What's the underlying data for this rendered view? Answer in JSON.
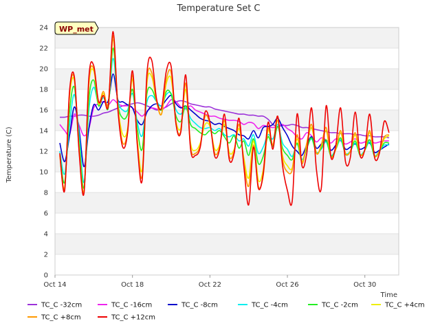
{
  "chart_data": {
    "type": "line",
    "title": "Temperature Set C",
    "xlabel": "Time",
    "ylabel": "Temperature (C)",
    "badge": "WP_met",
    "ylim": [
      0,
      24
    ],
    "yticks": [
      0,
      2,
      4,
      6,
      8,
      10,
      12,
      14,
      16,
      18,
      20,
      22,
      24
    ],
    "xlim": [
      "2023-10-14",
      "2023-10-31T18:00"
    ],
    "xticks": [
      {
        "date": "2023-10-14",
        "label": "Oct 14"
      },
      {
        "date": "2023-10-18",
        "label": "Oct 18"
      },
      {
        "date": "2023-10-22",
        "label": "Oct 22"
      },
      {
        "date": "2023-10-26",
        "label": "Oct 26"
      },
      {
        "date": "2023-10-30",
        "label": "Oct 30"
      }
    ],
    "grid": "horizontal-bands",
    "legend_position": "bottom",
    "x": [
      "2023-10-14T06:00",
      "2023-10-14T12:00",
      "2023-10-14T18:00",
      "2023-10-15T00:00",
      "2023-10-15T06:00",
      "2023-10-15T12:00",
      "2023-10-15T18:00",
      "2023-10-16T00:00",
      "2023-10-16T06:00",
      "2023-10-16T12:00",
      "2023-10-16T18:00",
      "2023-10-17T00:00",
      "2023-10-17T06:00",
      "2023-10-17T12:00",
      "2023-10-17T18:00",
      "2023-10-18T00:00",
      "2023-10-18T06:00",
      "2023-10-18T12:00",
      "2023-10-18T18:00",
      "2023-10-19T00:00",
      "2023-10-19T06:00",
      "2023-10-19T12:00",
      "2023-10-19T18:00",
      "2023-10-20T00:00",
      "2023-10-20T06:00",
      "2023-10-20T12:00",
      "2023-10-20T18:00",
      "2023-10-21T00:00",
      "2023-10-21T06:00",
      "2023-10-21T12:00",
      "2023-10-21T18:00",
      "2023-10-22T00:00",
      "2023-10-22T06:00",
      "2023-10-22T12:00",
      "2023-10-22T18:00",
      "2023-10-23T00:00",
      "2023-10-23T06:00",
      "2023-10-23T12:00",
      "2023-10-23T18:00",
      "2023-10-24T00:00",
      "2023-10-24T06:00",
      "2023-10-24T12:00",
      "2023-10-24T18:00",
      "2023-10-25T00:00",
      "2023-10-25T06:00",
      "2023-10-25T12:00",
      "2023-10-25T18:00",
      "2023-10-26T00:00",
      "2023-10-26T06:00",
      "2023-10-26T12:00",
      "2023-10-26T18:00",
      "2023-10-27T00:00",
      "2023-10-27T06:00",
      "2023-10-27T12:00",
      "2023-10-27T18:00",
      "2023-10-28T00:00",
      "2023-10-28T06:00",
      "2023-10-28T12:00",
      "2023-10-28T18:00",
      "2023-10-29T00:00",
      "2023-10-29T06:00",
      "2023-10-29T12:00",
      "2023-10-29T18:00",
      "2023-10-30T00:00",
      "2023-10-30T06:00",
      "2023-10-30T12:00",
      "2023-10-30T18:00",
      "2023-10-31T00:00",
      "2023-10-31T06:00"
    ],
    "series": [
      {
        "name": "TC_C -32cm",
        "color": "#9b30d9",
        "values": [
          15.3,
          15.3,
          15.4,
          15.4,
          15.5,
          15.5,
          15.4,
          15.4,
          15.5,
          15.7,
          15.8,
          16.0,
          16.2,
          16.4,
          16.5,
          16.6,
          16.7,
          16.6,
          16.4,
          16.2,
          16.0,
          16.1,
          16.3,
          16.6,
          16.8,
          16.9,
          16.8,
          16.6,
          16.5,
          16.4,
          16.3,
          16.3,
          16.1,
          16.0,
          15.9,
          15.8,
          15.7,
          15.6,
          15.6,
          15.5,
          15.5,
          15.4,
          15.4,
          15.1,
          14.6,
          14.4,
          14.5,
          14.5,
          14.6,
          14.5,
          14.3,
          14.3,
          14.2,
          14.1,
          14.0,
          13.9,
          13.8,
          13.8,
          13.7,
          13.7,
          13.7,
          13.6,
          13.6,
          13.5,
          13.5,
          13.4,
          13.4,
          13.4,
          13.3
        ]
      },
      {
        "name": "TC_C -16cm",
        "color": "#ee22ee",
        "values": [
          14.6,
          14.0,
          13.6,
          15.6,
          14.5,
          13.5,
          14.2,
          16.2,
          16.6,
          16.8,
          16.5,
          17.0,
          16.6,
          16.4,
          16.4,
          16.2,
          15.8,
          15.4,
          15.9,
          16.2,
          16.1,
          16.0,
          16.4,
          17.0,
          16.8,
          16.3,
          16.1,
          16.4,
          16.0,
          15.8,
          15.6,
          15.4,
          15.4,
          15.2,
          15.1,
          15.0,
          15.0,
          14.9,
          14.6,
          14.8,
          14.7,
          14.2,
          14.5,
          14.4,
          14.3,
          14.4,
          14.6,
          14.2,
          13.9,
          13.4,
          13.2,
          13.8,
          13.5,
          12.9,
          13.3,
          13.1,
          12.8,
          13.2,
          13.0,
          12.7,
          12.9,
          13.2,
          12.8,
          12.9,
          13.1,
          12.8,
          12.9,
          13.0,
          13.0
        ]
      },
      {
        "name": "TC_C -8cm",
        "color": "#0000cc",
        "values": [
          12.8,
          11.0,
          13.5,
          16.3,
          14.0,
          10.5,
          14.2,
          16.5,
          16.0,
          16.8,
          16.9,
          19.5,
          17.0,
          16.8,
          16.5,
          16.2,
          15.0,
          14.6,
          15.8,
          16.4,
          16.6,
          16.4,
          17.0,
          17.4,
          16.6,
          16.2,
          16.4,
          16.0,
          15.6,
          15.2,
          15.0,
          14.9,
          14.6,
          14.7,
          14.4,
          14.2,
          14.0,
          13.6,
          13.5,
          13.2,
          14.0,
          13.3,
          14.3,
          14.4,
          14.6,
          15.2,
          14.3,
          13.5,
          12.5,
          12.0,
          11.6,
          12.6,
          13.4,
          12.3,
          12.7,
          13.0,
          12.1,
          12.6,
          13.1,
          12.2,
          12.4,
          12.7,
          12.2,
          12.4,
          12.8,
          11.9,
          12.1,
          12.4,
          12.7
        ]
      },
      {
        "name": "TC_C -4cm",
        "color": "#00eeee",
        "values": [
          12.0,
          9.8,
          14.5,
          17.5,
          13.5,
          9.0,
          16.0,
          18.2,
          16.6,
          17.2,
          16.6,
          21.0,
          16.9,
          16.0,
          16.0,
          17.6,
          14.8,
          13.5,
          16.8,
          17.4,
          16.8,
          16.4,
          17.5,
          17.6,
          16.0,
          15.6,
          16.2,
          15.2,
          14.7,
          14.3,
          14.2,
          14.3,
          14.0,
          14.2,
          13.6,
          13.4,
          13.6,
          13.0,
          13.2,
          12.5,
          13.6,
          11.8,
          12.4,
          13.6,
          13.2,
          14.6,
          12.8,
          12.2,
          11.5,
          12.7,
          11.2,
          12.3,
          13.2,
          11.9,
          12.2,
          12.9,
          11.6,
          12.2,
          13.1,
          11.8,
          12.0,
          12.8,
          11.7,
          12.1,
          12.9,
          11.6,
          12.0,
          12.6,
          12.6
        ]
      },
      {
        "name": "TC_C -2cm",
        "color": "#22ee22",
        "values": [
          11.8,
          9.0,
          15.8,
          18.2,
          12.8,
          8.5,
          17.0,
          18.9,
          16.4,
          17.4,
          16.2,
          22.0,
          16.6,
          15.2,
          15.6,
          18.0,
          14.2,
          12.2,
          17.6,
          18.0,
          16.8,
          16.0,
          17.8,
          17.5,
          15.4,
          14.9,
          16.4,
          14.6,
          14.2,
          13.8,
          13.6,
          14.0,
          13.7,
          14.0,
          13.4,
          12.8,
          13.5,
          12.3,
          13.0,
          11.6,
          13.2,
          10.8,
          11.5,
          13.4,
          12.5,
          14.4,
          12.3,
          11.6,
          11.2,
          12.8,
          11.0,
          12.3,
          13.3,
          11.8,
          12.3,
          13.1,
          11.5,
          12.2,
          13.3,
          11.7,
          12.0,
          13.0,
          11.6,
          12.1,
          13.1,
          11.5,
          12.0,
          12.8,
          12.8
        ]
      },
      {
        "name": "TC_C +4cm",
        "color": "#eeee00",
        "values": [
          11.6,
          8.5,
          17.2,
          18.8,
          12.2,
          8.2,
          18.4,
          19.8,
          16.6,
          17.6,
          16.4,
          22.8,
          16.4,
          13.6,
          14.2,
          19.0,
          13.2,
          10.2,
          18.6,
          19.2,
          16.8,
          15.6,
          18.6,
          19.0,
          14.9,
          14.3,
          18.0,
          12.8,
          12.1,
          12.8,
          14.6,
          14.4,
          12.2,
          12.6,
          14.6,
          11.9,
          12.2,
          14.2,
          11.4,
          9.4,
          13.0,
          9.2,
          10.2,
          14.0,
          12.6,
          15.0,
          11.6,
          10.6,
          10.4,
          13.2,
          11.0,
          12.6,
          14.3,
          11.8,
          12.5,
          14.0,
          11.5,
          12.2,
          13.8,
          11.8,
          12.0,
          13.6,
          11.7,
          12.1,
          13.8,
          11.6,
          12.0,
          13.2,
          13.5
        ]
      },
      {
        "name": "TC_C +8cm",
        "color": "#ff9900",
        "values": [
          11.6,
          8.4,
          17.6,
          19.0,
          12.0,
          8.1,
          18.8,
          20.0,
          16.8,
          17.8,
          16.6,
          23.2,
          16.3,
          12.8,
          14.0,
          19.4,
          12.8,
          9.6,
          19.0,
          19.6,
          16.8,
          15.6,
          19.0,
          19.6,
          14.6,
          14.0,
          18.6,
          12.4,
          11.8,
          12.6,
          15.4,
          14.6,
          11.8,
          12.4,
          15.0,
          11.5,
          12.0,
          14.6,
          11.0,
          8.6,
          12.6,
          8.6,
          9.6,
          14.2,
          12.6,
          15.4,
          11.2,
          10.0,
          10.2,
          13.6,
          10.8,
          12.8,
          14.6,
          11.8,
          12.6,
          14.3,
          11.5,
          12.2,
          14.0,
          11.8,
          12.0,
          13.8,
          11.7,
          12.1,
          14.0,
          11.6,
          12.0,
          13.4,
          13.6
        ]
      },
      {
        "name": "TC_C +12cm",
        "color": "#ee0000",
        "values": [
          11.8,
          8.2,
          17.8,
          19.2,
          11.8,
          8.0,
          19.2,
          20.3,
          16.8,
          17.4,
          16.4,
          23.6,
          16.0,
          12.4,
          13.8,
          19.8,
          12.6,
          9.2,
          19.6,
          20.8,
          17.0,
          16.2,
          19.8,
          20.2,
          14.6,
          13.9,
          19.4,
          12.2,
          11.6,
          12.4,
          15.8,
          14.8,
          11.5,
          12.2,
          15.6,
          11.2,
          11.8,
          15.2,
          10.6,
          6.8,
          12.4,
          8.4,
          9.8,
          14.8,
          12.2,
          15.4,
          10.6,
          8.2,
          7.2,
          15.6,
          10.6,
          11.8,
          16.2,
          10.2,
          8.4,
          16.4,
          11.4,
          12.6,
          16.2,
          11.0,
          11.4,
          15.8,
          11.6,
          12.2,
          15.6,
          11.4,
          11.8,
          14.9,
          13.8
        ]
      }
    ]
  }
}
